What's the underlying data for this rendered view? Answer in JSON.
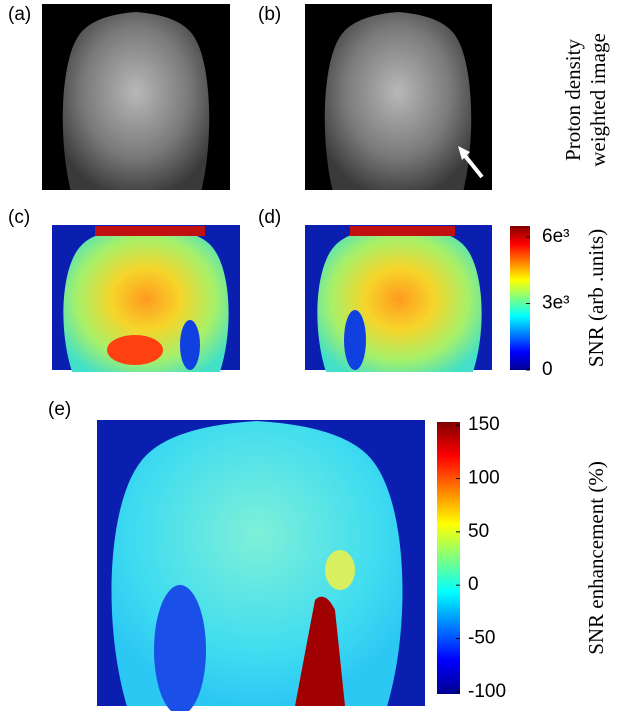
{
  "panels": [
    {
      "label": "(a)"
    },
    {
      "label": "(b)"
    },
    {
      "label": "(c)"
    },
    {
      "label": "(d)"
    },
    {
      "label": "(e)"
    }
  ],
  "side_label": [
    "Proton density",
    "weighted image"
  ],
  "snr_colorbar": {
    "title": "SNR (arb .units)",
    "lim": [
      0,
      6500
    ],
    "ticks": [
      {
        "value": 6000,
        "label": "6e³"
      },
      {
        "value": 3000,
        "label": "3e³"
      },
      0
    ]
  },
  "enhancement_colorbar": {
    "title": "SNR enhancement (%)",
    "lim": [
      -102,
      153
    ],
    "ticks": [
      150,
      100,
      50,
      0,
      -50,
      -100
    ]
  }
}
